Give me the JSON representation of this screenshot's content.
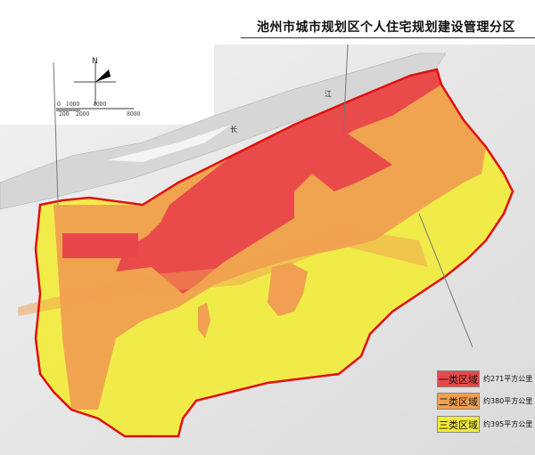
{
  "title": "池州市城市规划区个人住宅规划建设管理分区",
  "compass": {
    "label": "N"
  },
  "scale_bar": {
    "top_ticks": [
      "0",
      "1000",
      "4000"
    ],
    "bottom_ticks": [
      "200",
      "2000",
      "8000"
    ]
  },
  "map_labels": {
    "river_1": "长",
    "river_2": "江"
  },
  "legend": [
    {
      "label": "一类区域",
      "area": "约271平方公里",
      "color": "#e8474a"
    },
    {
      "label": "二类区域",
      "area": "约380平方公里",
      "color": "#f0a050"
    },
    {
      "label": "三类区域",
      "area": "约395平方公里",
      "color": "#f2ec3c"
    }
  ],
  "colors": {
    "boundary": "#e01010",
    "river": "#d8d8d8",
    "terrain": "#b8b8b8"
  }
}
